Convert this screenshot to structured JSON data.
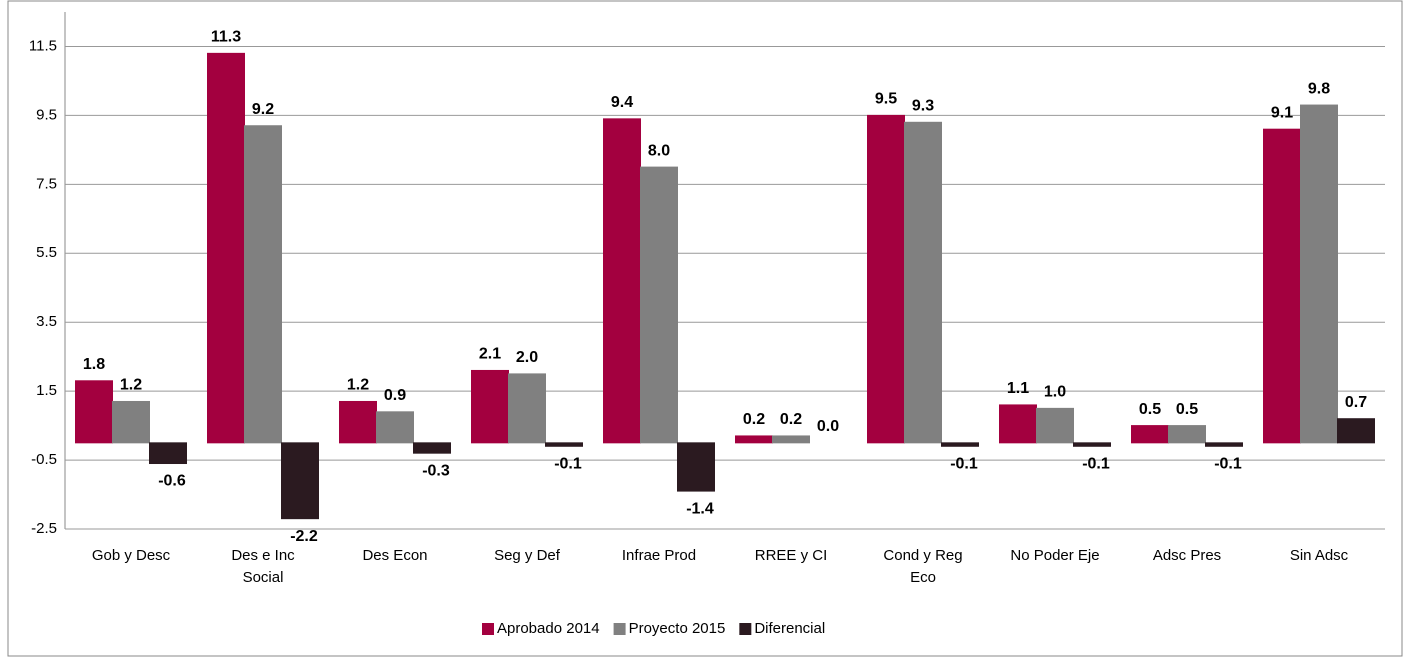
{
  "chart_data": {
    "type": "bar",
    "categories": [
      "Gob y Desc",
      "Des e Inc Social",
      "Des Econ",
      "Seg y Def",
      "Infrae Prod",
      "RREE y CI",
      "Cond y Reg Eco",
      "No Poder Eje",
      "Adsc Pres",
      "Sin Adsc"
    ],
    "series": [
      {
        "name": "Aprobado 2014",
        "color": "#a3003f",
        "values": [
          1.8,
          11.3,
          1.2,
          2.1,
          9.4,
          0.2,
          9.5,
          1.1,
          0.5,
          9.1
        ],
        "value_labels": [
          "1.8",
          "11.3",
          "1.2",
          "2.1",
          "9.4",
          "0.2",
          "9.5",
          "1.1",
          "0.5",
          "9.1"
        ]
      },
      {
        "name": "Proyecto 2015",
        "color": "#808080",
        "values": [
          1.2,
          9.2,
          0.9,
          2.0,
          8.0,
          0.2,
          9.3,
          1.0,
          0.5,
          9.8
        ],
        "value_labels": [
          "1.2",
          "9.2",
          "0.9",
          "2.0",
          "8.0",
          "0.2",
          "9.3",
          "1.0",
          "0.5",
          "9.8"
        ]
      },
      {
        "name": "Diferencial",
        "color": "#2b1a20",
        "values": [
          -0.6,
          -2.2,
          -0.3,
          -0.1,
          -1.4,
          0,
          -0.1,
          -0.1,
          -0.1,
          0.7
        ],
        "value_labels": [
          "-0.6",
          "-2.2",
          "-0.3",
          "-0.1",
          "-1.4",
          "0.0",
          "-0.1",
          "-0.1",
          "-0.1",
          "0.7"
        ]
      }
    ],
    "ylim": [
      -2.5,
      12.5
    ],
    "yticks": [
      -2.5,
      -0.5,
      1.5,
      3.5,
      5.5,
      7.5,
      9.5,
      11.5
    ],
    "grid": true,
    "legend": "bottom"
  }
}
